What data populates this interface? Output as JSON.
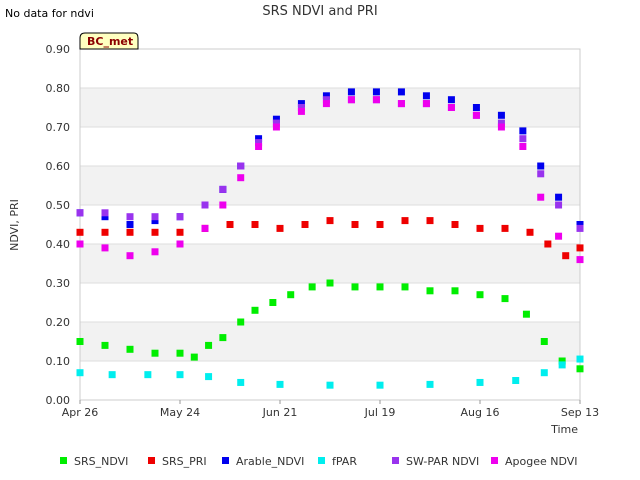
{
  "note": "No data for ndvi",
  "tag": "BC_met",
  "chart_data": {
    "type": "scatter",
    "title": "SRS NDVI and PRI",
    "xlabel": "Time",
    "ylabel": "NDVI, PRI",
    "xlim": [
      "2024-04-26",
      "2024-09-13"
    ],
    "ylim": [
      0.0,
      0.9
    ],
    "grid": true,
    "legend_position": "bottom",
    "x_ticks": [
      {
        "label": "Apr 26",
        "date": "2024-04-26"
      },
      {
        "label": "May 24",
        "date": "2024-05-24"
      },
      {
        "label": "Jun 21",
        "date": "2024-06-21"
      },
      {
        "label": "Jul 19",
        "date": "2024-07-19"
      },
      {
        "label": "Aug 16",
        "date": "2024-08-16"
      },
      {
        "label": "Sep 13",
        "date": "2024-09-13"
      }
    ],
    "y_ticks": [
      "0.00",
      "0.10",
      "0.20",
      "0.30",
      "0.40",
      "0.50",
      "0.60",
      "0.70",
      "0.80",
      "0.90"
    ],
    "series": [
      {
        "name": "SRS_NDVI",
        "color": "#00ee00",
        "points": [
          [
            "2024-04-26",
            0.15
          ],
          [
            "2024-05-03",
            0.14
          ],
          [
            "2024-05-10",
            0.13
          ],
          [
            "2024-05-17",
            0.12
          ],
          [
            "2024-05-24",
            0.12
          ],
          [
            "2024-05-28",
            0.11
          ],
          [
            "2024-06-01",
            0.14
          ],
          [
            "2024-06-05",
            0.16
          ],
          [
            "2024-06-10",
            0.2
          ],
          [
            "2024-06-14",
            0.23
          ],
          [
            "2024-06-19",
            0.25
          ],
          [
            "2024-06-24",
            0.27
          ],
          [
            "2024-06-30",
            0.29
          ],
          [
            "2024-07-05",
            0.3
          ],
          [
            "2024-07-12",
            0.29
          ],
          [
            "2024-07-19",
            0.29
          ],
          [
            "2024-07-26",
            0.29
          ],
          [
            "2024-08-02",
            0.28
          ],
          [
            "2024-08-09",
            0.28
          ],
          [
            "2024-08-16",
            0.27
          ],
          [
            "2024-08-23",
            0.26
          ],
          [
            "2024-08-29",
            0.22
          ],
          [
            "2024-09-03",
            0.15
          ],
          [
            "2024-09-08",
            0.1
          ],
          [
            "2024-09-13",
            0.08
          ]
        ]
      },
      {
        "name": "SRS_PRI",
        "color": "#ee0000",
        "points": [
          [
            "2024-04-26",
            0.43
          ],
          [
            "2024-05-03",
            0.43
          ],
          [
            "2024-05-10",
            0.43
          ],
          [
            "2024-05-17",
            0.43
          ],
          [
            "2024-05-24",
            0.43
          ],
          [
            "2024-05-31",
            0.44
          ],
          [
            "2024-06-07",
            0.45
          ],
          [
            "2024-06-14",
            0.45
          ],
          [
            "2024-06-21",
            0.44
          ],
          [
            "2024-06-28",
            0.45
          ],
          [
            "2024-07-05",
            0.46
          ],
          [
            "2024-07-12",
            0.45
          ],
          [
            "2024-07-19",
            0.45
          ],
          [
            "2024-07-26",
            0.46
          ],
          [
            "2024-08-02",
            0.46
          ],
          [
            "2024-08-09",
            0.45
          ],
          [
            "2024-08-16",
            0.44
          ],
          [
            "2024-08-23",
            0.44
          ],
          [
            "2024-08-30",
            0.43
          ],
          [
            "2024-09-04",
            0.4
          ],
          [
            "2024-09-09",
            0.37
          ],
          [
            "2024-09-13",
            0.39
          ]
        ]
      },
      {
        "name": "Arable_NDVI",
        "color": "#0000ee",
        "points": [
          [
            "2024-04-26",
            0.48
          ],
          [
            "2024-05-03",
            0.47
          ],
          [
            "2024-05-10",
            0.45
          ],
          [
            "2024-05-17",
            0.46
          ],
          [
            "2024-05-24",
            0.47
          ],
          [
            "2024-05-31",
            0.5
          ],
          [
            "2024-06-05",
            0.54
          ],
          [
            "2024-06-10",
            0.6
          ],
          [
            "2024-06-15",
            0.67
          ],
          [
            "2024-06-20",
            0.72
          ],
          [
            "2024-06-27",
            0.76
          ],
          [
            "2024-07-04",
            0.78
          ],
          [
            "2024-07-11",
            0.79
          ],
          [
            "2024-07-18",
            0.79
          ],
          [
            "2024-07-25",
            0.79
          ],
          [
            "2024-08-01",
            0.78
          ],
          [
            "2024-08-08",
            0.77
          ],
          [
            "2024-08-15",
            0.75
          ],
          [
            "2024-08-22",
            0.73
          ],
          [
            "2024-08-28",
            0.69
          ],
          [
            "2024-09-02",
            0.6
          ],
          [
            "2024-09-07",
            0.52
          ],
          [
            "2024-09-13",
            0.45
          ]
        ]
      },
      {
        "name": "fPAR",
        "color": "#00eeee",
        "points": [
          [
            "2024-04-26",
            0.07
          ],
          [
            "2024-05-05",
            0.065
          ],
          [
            "2024-05-15",
            0.065
          ],
          [
            "2024-05-24",
            0.065
          ],
          [
            "2024-06-01",
            0.06
          ],
          [
            "2024-06-10",
            0.045
          ],
          [
            "2024-06-21",
            0.04
          ],
          [
            "2024-07-05",
            0.038
          ],
          [
            "2024-07-19",
            0.038
          ],
          [
            "2024-08-02",
            0.04
          ],
          [
            "2024-08-16",
            0.045
          ],
          [
            "2024-08-26",
            0.05
          ],
          [
            "2024-09-03",
            0.07
          ],
          [
            "2024-09-08",
            0.09
          ],
          [
            "2024-09-13",
            0.105
          ]
        ]
      },
      {
        "name": "SW-PAR NDVI",
        "color": "#9933ee",
        "points": [
          [
            "2024-04-26",
            0.48
          ],
          [
            "2024-05-03",
            0.48
          ],
          [
            "2024-05-10",
            0.47
          ],
          [
            "2024-05-17",
            0.47
          ],
          [
            "2024-05-24",
            0.47
          ],
          [
            "2024-05-31",
            0.5
          ],
          [
            "2024-06-05",
            0.54
          ],
          [
            "2024-06-10",
            0.6
          ],
          [
            "2024-06-15",
            0.66
          ],
          [
            "2024-06-20",
            0.71
          ],
          [
            "2024-06-27",
            0.75
          ],
          [
            "2024-07-04",
            0.77
          ],
          [
            "2024-07-11",
            0.77
          ],
          [
            "2024-07-18",
            0.77
          ],
          [
            "2024-07-25",
            0.76
          ],
          [
            "2024-08-01",
            0.76
          ],
          [
            "2024-08-08",
            0.75
          ],
          [
            "2024-08-15",
            0.73
          ],
          [
            "2024-08-22",
            0.71
          ],
          [
            "2024-08-28",
            0.67
          ],
          [
            "2024-09-02",
            0.58
          ],
          [
            "2024-09-07",
            0.5
          ],
          [
            "2024-09-13",
            0.44
          ]
        ]
      },
      {
        "name": "Apogee NDVI",
        "color": "#ee00ee",
        "points": [
          [
            "2024-04-26",
            0.4
          ],
          [
            "2024-05-03",
            0.39
          ],
          [
            "2024-05-10",
            0.37
          ],
          [
            "2024-05-17",
            0.38
          ],
          [
            "2024-05-24",
            0.4
          ],
          [
            "2024-05-31",
            0.44
          ],
          [
            "2024-06-05",
            0.5
          ],
          [
            "2024-06-10",
            0.57
          ],
          [
            "2024-06-15",
            0.65
          ],
          [
            "2024-06-20",
            0.7
          ],
          [
            "2024-06-27",
            0.74
          ],
          [
            "2024-07-04",
            0.76
          ],
          [
            "2024-07-11",
            0.77
          ],
          [
            "2024-07-18",
            0.77
          ],
          [
            "2024-07-25",
            0.76
          ],
          [
            "2024-08-01",
            0.76
          ],
          [
            "2024-08-08",
            0.75
          ],
          [
            "2024-08-15",
            0.73
          ],
          [
            "2024-08-22",
            0.7
          ],
          [
            "2024-08-28",
            0.65
          ],
          [
            "2024-09-02",
            0.52
          ],
          [
            "2024-09-07",
            0.42
          ],
          [
            "2024-09-13",
            0.36
          ]
        ]
      }
    ]
  }
}
